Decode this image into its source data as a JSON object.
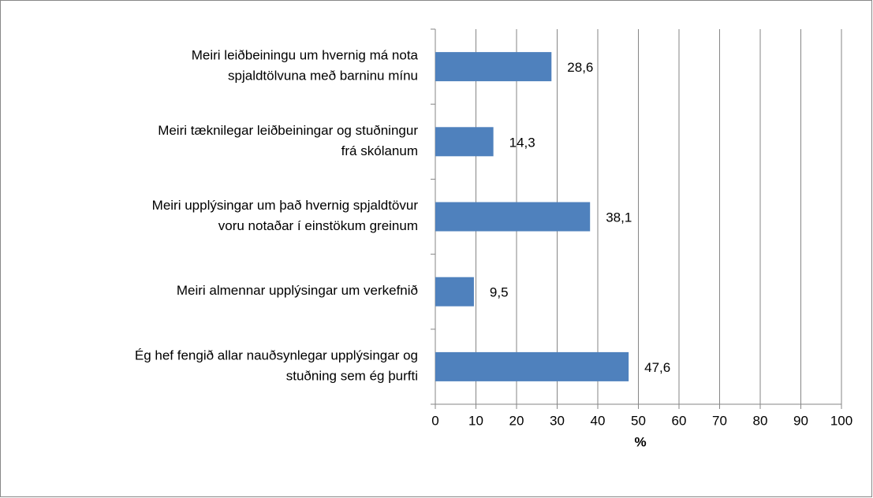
{
  "chart_data": {
    "type": "bar",
    "orientation": "horizontal",
    "categories": [
      [
        "Meiri leiðbeiningu um hvernig má nota",
        "spjaldtölvuna með barninu mínu"
      ],
      [
        "Meiri tæknilegar leiðbeiningar og stuðningur",
        "frá skólanum"
      ],
      [
        "Meiri upplýsingar um það hvernig spjaldtövur",
        "voru notaðar í einstökum greinum"
      ],
      [
        "Meiri almennar upplýsingar um verkefnið"
      ],
      [
        "Ég hef fengið allar nauðsynlegar upplýsingar og",
        "stuðning sem ég þurfti"
      ]
    ],
    "values": [
      28.6,
      14.3,
      38.1,
      9.5,
      47.6
    ],
    "value_labels": [
      "28,6",
      "14,3",
      "38,1",
      "9,5",
      "47,6"
    ],
    "color": "#4f81bd",
    "xlabel": "%",
    "xlim": [
      0,
      100
    ],
    "xticks": [
      0,
      10,
      20,
      30,
      40,
      50,
      60,
      70,
      80,
      90,
      100
    ],
    "grid": true
  }
}
